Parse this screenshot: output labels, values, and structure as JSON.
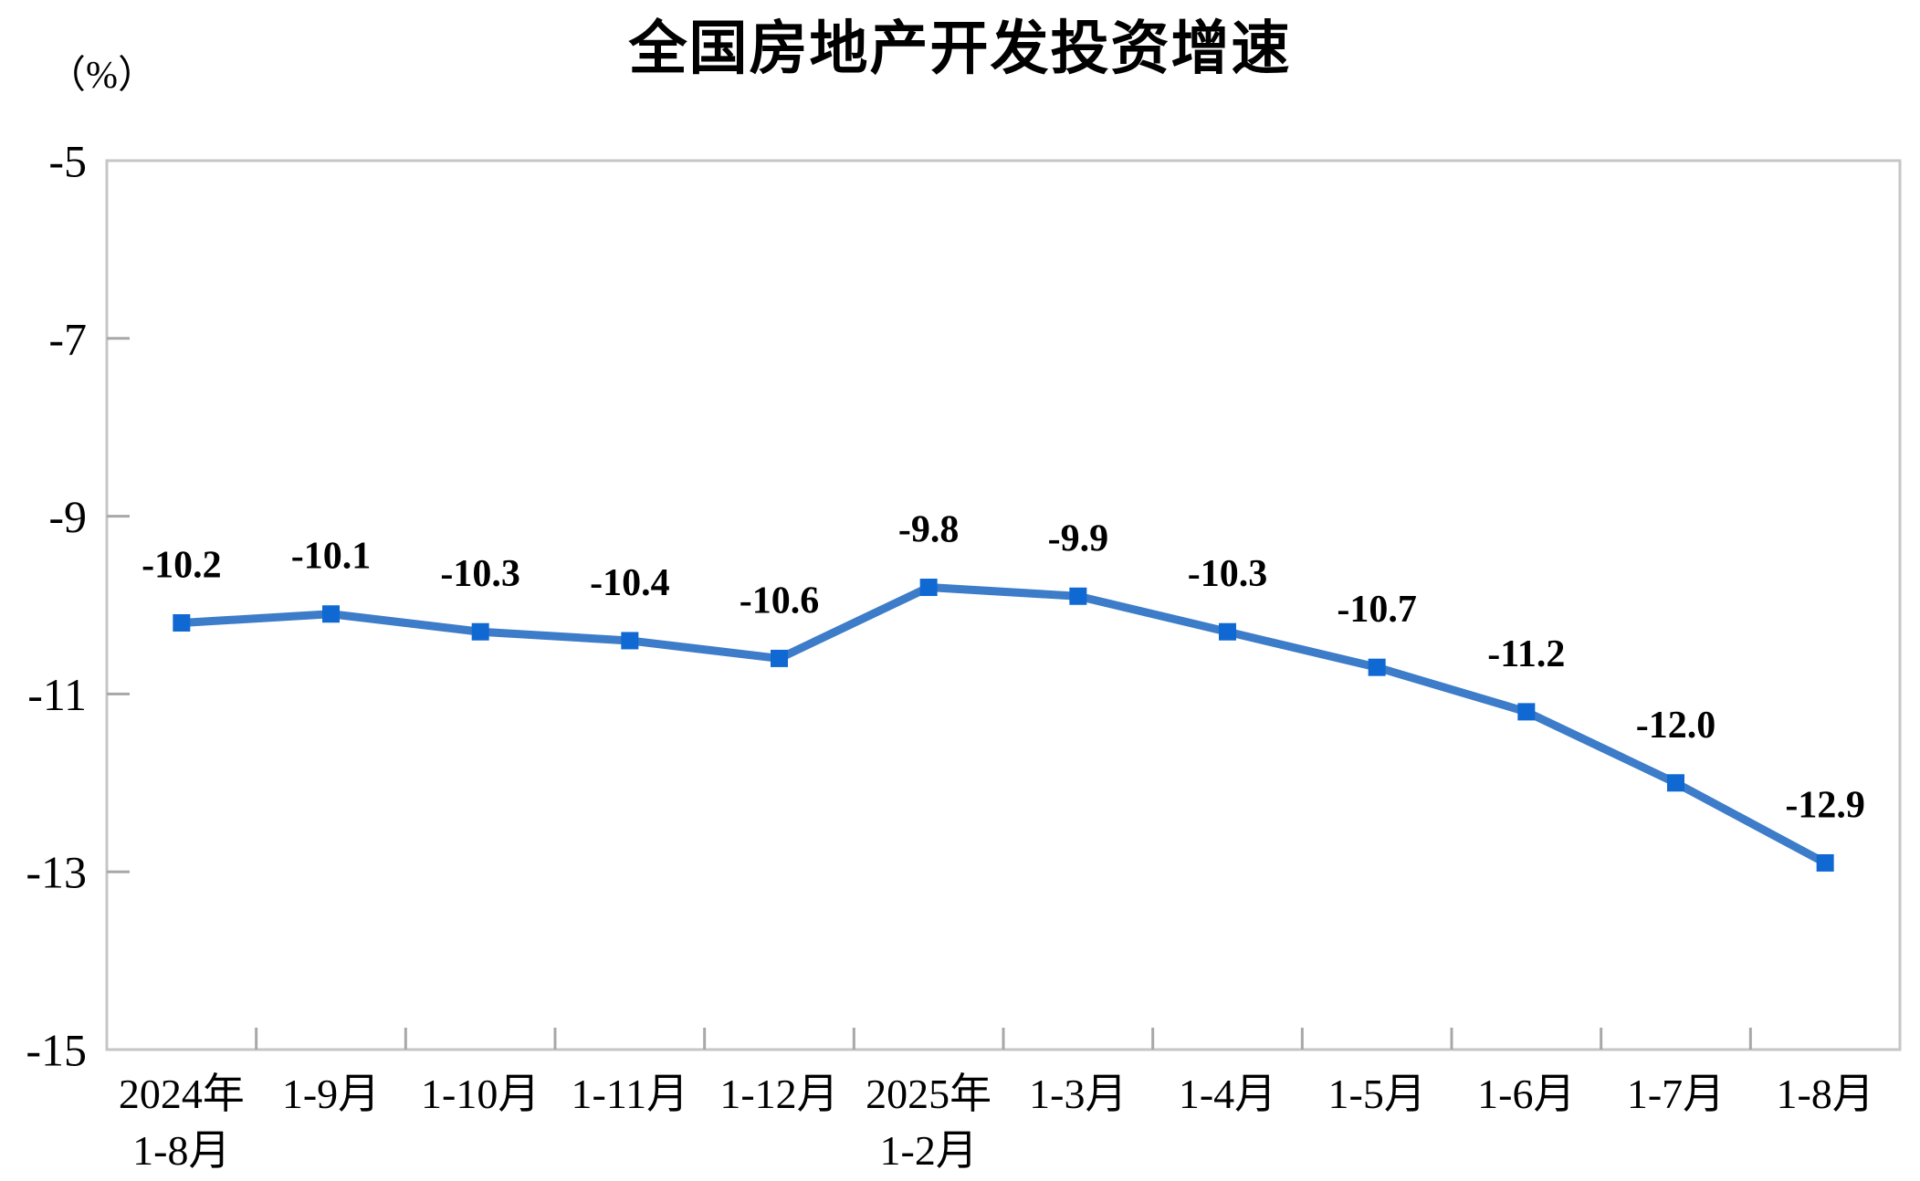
{
  "chart_data": {
    "type": "line",
    "title": "全国房地产开发投资增速",
    "y_unit_label": "（%）",
    "categories": [
      "2024年\n1-8月",
      "1-9月",
      "1-10月",
      "1-11月",
      "1-12月",
      "2025年\n1-2月",
      "1-3月",
      "1-4月",
      "1-5月",
      "1-6月",
      "1-7月",
      "1-8月"
    ],
    "values": [
      -10.2,
      -10.1,
      -10.3,
      -10.4,
      -10.6,
      -9.8,
      -9.9,
      -10.3,
      -10.7,
      -11.2,
      -12.0,
      -12.9
    ],
    "data_labels": [
      "-10.2",
      "-10.1",
      "-10.3",
      "-10.4",
      "-10.6",
      "-9.8",
      "-9.9",
      "-10.3",
      "-10.7",
      "-11.2",
      "-12.0",
      "-12.9"
    ],
    "ylim": [
      -15,
      -5
    ],
    "yticks": [
      -5,
      -7,
      -9,
      -11,
      -13,
      -15
    ],
    "ytick_labels": [
      "-5",
      "-7",
      "-9",
      "-11",
      "-13",
      "-15"
    ],
    "grid": "off",
    "legend": "none",
    "marker_shape": "square",
    "colors": {
      "line": "#3D7CC9",
      "marker": "#1069D2",
      "frame": "#C6C6C6",
      "tick": "#A8A8A8",
      "text": "#000000"
    }
  }
}
